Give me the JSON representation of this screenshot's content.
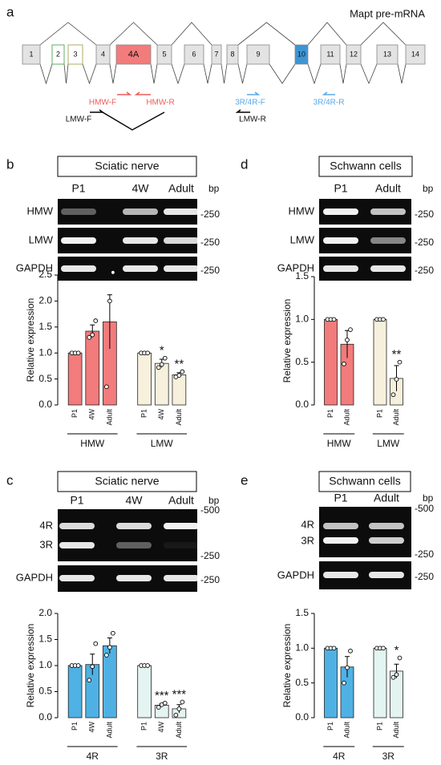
{
  "panels": {
    "a": {
      "label": "a",
      "title": "Mapt pre-mRNA",
      "exons": [
        "1",
        "2",
        "3",
        "4",
        "4A",
        "5",
        "6",
        "7",
        "8",
        "9",
        "10",
        "11",
        "12",
        "13",
        "14"
      ],
      "primers": [
        "HMW-F",
        "HMW-R",
        "3R/4R-F",
        "3R/4R-R",
        "LMW-F",
        "LMW-R"
      ]
    },
    "b": {
      "label": "b",
      "box_title": "Sciatic nerve",
      "lanes": [
        "P1",
        "4W",
        "Adult"
      ],
      "unit": "bp",
      "rows": [
        "HMW",
        "LMW",
        "GAPDH"
      ],
      "markers": [
        "-250",
        "-250",
        "-250"
      ]
    },
    "d": {
      "label": "d",
      "box_title": "Schwann cells",
      "lanes": [
        "P1",
        "Adult"
      ],
      "unit": "bp",
      "rows": [
        "HMW",
        "LMW",
        "GAPDH"
      ],
      "markers": [
        "-250",
        "-250",
        "-250"
      ]
    },
    "c": {
      "label": "c",
      "box_title": "Sciatic nerve",
      "lanes": [
        "P1",
        "4W",
        "Adult"
      ],
      "unit": "bp",
      "rows": [
        "4R",
        "3R",
        "GAPDH"
      ],
      "markers": [
        "-500",
        "-250",
        "-250"
      ]
    },
    "e": {
      "label": "e",
      "box_title": "Schwann cells",
      "lanes": [
        "P1",
        "Adult"
      ],
      "unit": "bp",
      "rows": [
        "4R",
        "3R",
        "GAPDH"
      ],
      "markers": [
        "-500",
        "-250",
        "-250"
      ]
    }
  },
  "chart_data": [
    {
      "type": "bar",
      "y_label": "Relative expression",
      "ylim": [
        0,
        2.5
      ],
      "yticks": [
        {
          "value": 0,
          "label": "0.0"
        },
        0.5,
        {
          "value": 1,
          "label": "1.0"
        },
        1.5,
        {
          "value": 2,
          "label": "2.0"
        },
        2.5
      ],
      "series": [
        {
          "name": "HMW",
          "color": "#f27b7b",
          "categories": [
            "P1",
            "4W",
            "Adult"
          ],
          "values": [
            1.0,
            1.42,
            1.6
          ],
          "errors": [
            0.02,
            0.12,
            0.52
          ],
          "points": [
            [
              1,
              1,
              1
            ],
            [
              1.3,
              1.35,
              1.62
            ],
            [
              0.35,
              2.0,
              2.55
            ]
          ],
          "annotations": [
            null,
            null,
            null
          ]
        },
        {
          "name": "LMW",
          "color": "#f6f0dc",
          "categories": [
            "P1",
            "4W",
            "Adult"
          ],
          "values": [
            1.0,
            0.8,
            0.58
          ],
          "errors": [
            0.01,
            0.08,
            0.04
          ],
          "points": [
            [
              1,
              1,
              1
            ],
            [
              0.72,
              0.78,
              0.9
            ],
            [
              0.54,
              0.57,
              0.64
            ]
          ],
          "annotations": [
            null,
            "*",
            "**"
          ]
        }
      ]
    },
    {
      "type": "bar",
      "y_label": "Relative expression",
      "ylim": [
        0,
        1.5
      ],
      "yticks": [
        {
          "value": 0,
          "label": "0.0"
        },
        0.5,
        {
          "value": 1,
          "label": "1.0"
        },
        1.5
      ],
      "series": [
        {
          "name": "HMW",
          "color": "#f27b7b",
          "categories": [
            "P1",
            "Adult"
          ],
          "values": [
            1.0,
            0.71
          ],
          "errors": [
            0.0,
            0.16
          ],
          "points": [
            [
              1,
              1,
              1
            ],
            [
              0.48,
              0.76,
              0.88
            ]
          ],
          "annotations": [
            null,
            null
          ]
        },
        {
          "name": "LMW",
          "color": "#f6f0dc",
          "categories": [
            "P1",
            "Adult"
          ],
          "values": [
            1.0,
            0.31
          ],
          "errors": [
            0.0,
            0.15
          ],
          "points": [
            [
              1,
              1,
              1
            ],
            [
              0.12,
              0.3,
              0.5
            ]
          ],
          "annotations": [
            null,
            "**"
          ]
        }
      ]
    },
    {
      "type": "bar",
      "y_label": "Relative expression",
      "ylim": [
        0,
        2.0
      ],
      "yticks": [
        {
          "value": 0,
          "label": "0.0"
        },
        0.5,
        {
          "value": 1,
          "label": "1.0"
        },
        1.5,
        {
          "value": 2,
          "label": "2.0"
        }
      ],
      "series": [
        {
          "name": "4R",
          "color": "#4fb1e3",
          "categories": [
            "P1",
            "4W",
            "Adult"
          ],
          "values": [
            1.0,
            1.02,
            1.38
          ],
          "errors": [
            0.01,
            0.2,
            0.15
          ],
          "points": [
            [
              1,
              1,
              1
            ],
            [
              0.72,
              0.98,
              1.42
            ],
            [
              1.2,
              1.35,
              1.62
            ]
          ],
          "annotations": [
            null,
            null,
            null
          ]
        },
        {
          "name": "3R",
          "color": "#e3f4f1",
          "categories": [
            "P1",
            "4W",
            "Adult"
          ],
          "values": [
            1.0,
            0.24,
            0.17
          ],
          "errors": [
            0.01,
            0.03,
            0.08
          ],
          "points": [
            [
              1,
              1,
              1
            ],
            [
              0.2,
              0.25,
              0.28
            ],
            [
              0.05,
              0.17,
              0.3
            ]
          ],
          "annotations": [
            null,
            "***",
            "***"
          ]
        }
      ]
    },
    {
      "type": "bar",
      "y_label": "Relative expression",
      "ylim": [
        0,
        1.5
      ],
      "yticks": [
        {
          "value": 0,
          "label": "0.0"
        },
        0.5,
        {
          "value": 1,
          "label": "1.0"
        },
        1.5
      ],
      "series": [
        {
          "name": "4R",
          "color": "#4fb1e3",
          "categories": [
            "P1",
            "Adult"
          ],
          "values": [
            1.0,
            0.73
          ],
          "errors": [
            0.0,
            0.15
          ],
          "points": [
            [
              1,
              1,
              1
            ],
            [
              0.5,
              0.72,
              0.96
            ]
          ],
          "annotations": [
            null,
            null
          ]
        },
        {
          "name": "3R",
          "color": "#e3f4f1",
          "categories": [
            "P1",
            "Adult"
          ],
          "values": [
            1.0,
            0.67
          ],
          "errors": [
            0.0,
            0.1
          ],
          "points": [
            [
              1,
              1,
              1
            ],
            [
              0.58,
              0.62,
              0.86
            ]
          ],
          "annotations": [
            null,
            "*"
          ]
        }
      ]
    }
  ]
}
